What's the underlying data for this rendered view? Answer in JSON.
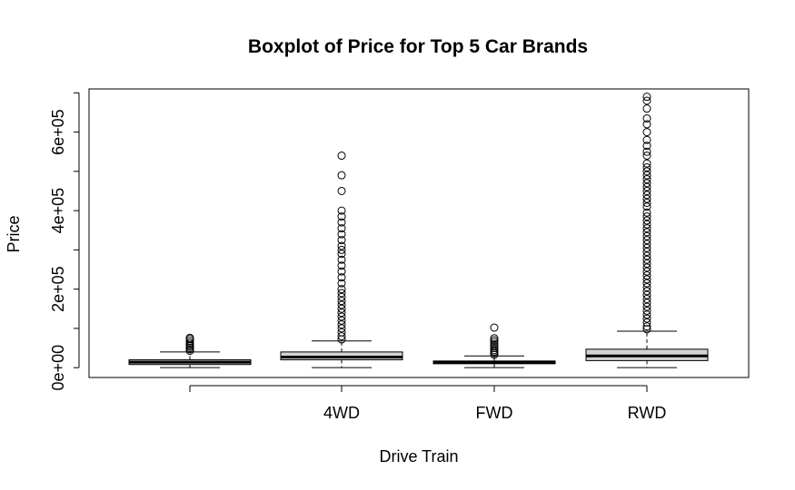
{
  "chart_data": {
    "type": "boxplot",
    "title": "Boxplot of Price for Top 5 Car Brands",
    "xlabel": "Drive Train",
    "ylabel": "Price",
    "categories": [
      "",
      "4WD",
      "FWD",
      "RWD"
    ],
    "y_ticks": [
      "0e+00",
      "2e+05",
      "4e+05",
      "6e+05"
    ],
    "y_tick_values": [
      0,
      200000,
      400000,
      600000
    ],
    "ylim": [
      -25000,
      710000
    ],
    "grid": false,
    "box_fill": "#d3d3d3",
    "boxes": [
      {
        "category": "",
        "min": 0,
        "q1": 8000,
        "median": 14000,
        "q3": 20000,
        "max": 40000,
        "outliers": [
          43000,
          47000,
          51000,
          55000,
          58000,
          63000,
          68000,
          73000,
          76000
        ]
      },
      {
        "category": "4WD",
        "min": 0,
        "q1": 20000,
        "median": 27000,
        "q3": 40000,
        "max": 68000,
        "outliers": [
          72000,
          80000,
          90000,
          100000,
          110000,
          120000,
          130000,
          140000,
          150000,
          160000,
          170000,
          180000,
          190000,
          200000,
          215000,
          230000,
          245000,
          260000,
          275000,
          290000,
          300000,
          310000,
          325000,
          340000,
          355000,
          370000,
          385000,
          400000,
          450000,
          490000,
          540000
        ]
      },
      {
        "category": "FWD",
        "min": 0,
        "q1": 10000,
        "median": 14000,
        "q3": 17000,
        "max": 30000,
        "outliers": [
          33000,
          37000,
          41000,
          45000,
          50000,
          55000,
          60000,
          65000,
          70000,
          75000,
          102000
        ]
      },
      {
        "category": "RWD",
        "min": 0,
        "q1": 18000,
        "median": 30000,
        "q3": 47000,
        "max": 93000,
        "outliers": [
          98000,
          105000,
          115000,
          125000,
          135000,
          145000,
          155000,
          165000,
          175000,
          185000,
          195000,
          205000,
          215000,
          225000,
          235000,
          245000,
          255000,
          265000,
          275000,
          285000,
          295000,
          305000,
          315000,
          325000,
          335000,
          345000,
          355000,
          365000,
          375000,
          385000,
          395000,
          410000,
          420000,
          430000,
          440000,
          450000,
          460000,
          470000,
          480000,
          490000,
          500000,
          510000,
          520000,
          540000,
          550000,
          565000,
          580000,
          600000,
          620000,
          635000,
          660000,
          680000,
          690000
        ]
      }
    ]
  }
}
